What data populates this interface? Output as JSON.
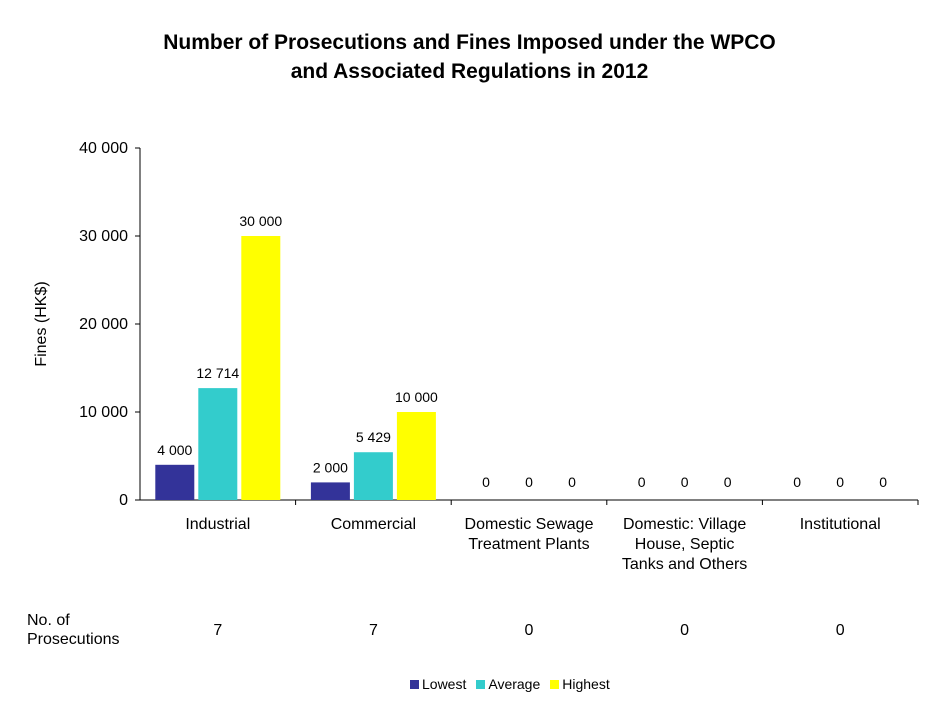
{
  "chart_data": {
    "type": "bar",
    "title_lines": [
      "Number of Prosecutions and Fines Imposed under the WPCO",
      "and Associated Regulations in 2012"
    ],
    "ylabel": "Fines (HK$)",
    "xlabel": "",
    "ylim": [
      0,
      40000
    ],
    "yticks": [
      0,
      10000,
      20000,
      30000,
      40000
    ],
    "ytick_labels": [
      "0",
      "10 000",
      "20 000",
      "30 000",
      "40 000"
    ],
    "grid": false,
    "legend_position": "bottom",
    "categories": [
      [
        "Industrial"
      ],
      [
        "Commercial"
      ],
      [
        "Domestic Sewage",
        "Treatment Plants"
      ],
      [
        "Domestic: Village",
        "House, Septic",
        "Tanks and Others"
      ],
      [
        "Institutional"
      ]
    ],
    "series": [
      {
        "name": "Lowest",
        "color": "#333399",
        "values": [
          4000,
          2000,
          0,
          0,
          0
        ],
        "labels": [
          "4 000",
          "2 000",
          "0",
          "0",
          "0"
        ]
      },
      {
        "name": "Average",
        "color": "#33CCCC",
        "values": [
          12714,
          5429,
          0,
          0,
          0
        ],
        "labels": [
          "12 714",
          "5 429",
          "0",
          "0",
          "0"
        ]
      },
      {
        "name": "Highest",
        "color": "#FFFF00",
        "values": [
          30000,
          10000,
          0,
          0,
          0
        ],
        "labels": [
          "30 000",
          "10 000",
          "0",
          "0",
          "0"
        ]
      }
    ],
    "prosecutions": {
      "label_lines": [
        "No. of",
        "Prosecutions"
      ],
      "values": [
        "7",
        "7",
        "0",
        "0",
        "0"
      ]
    }
  }
}
